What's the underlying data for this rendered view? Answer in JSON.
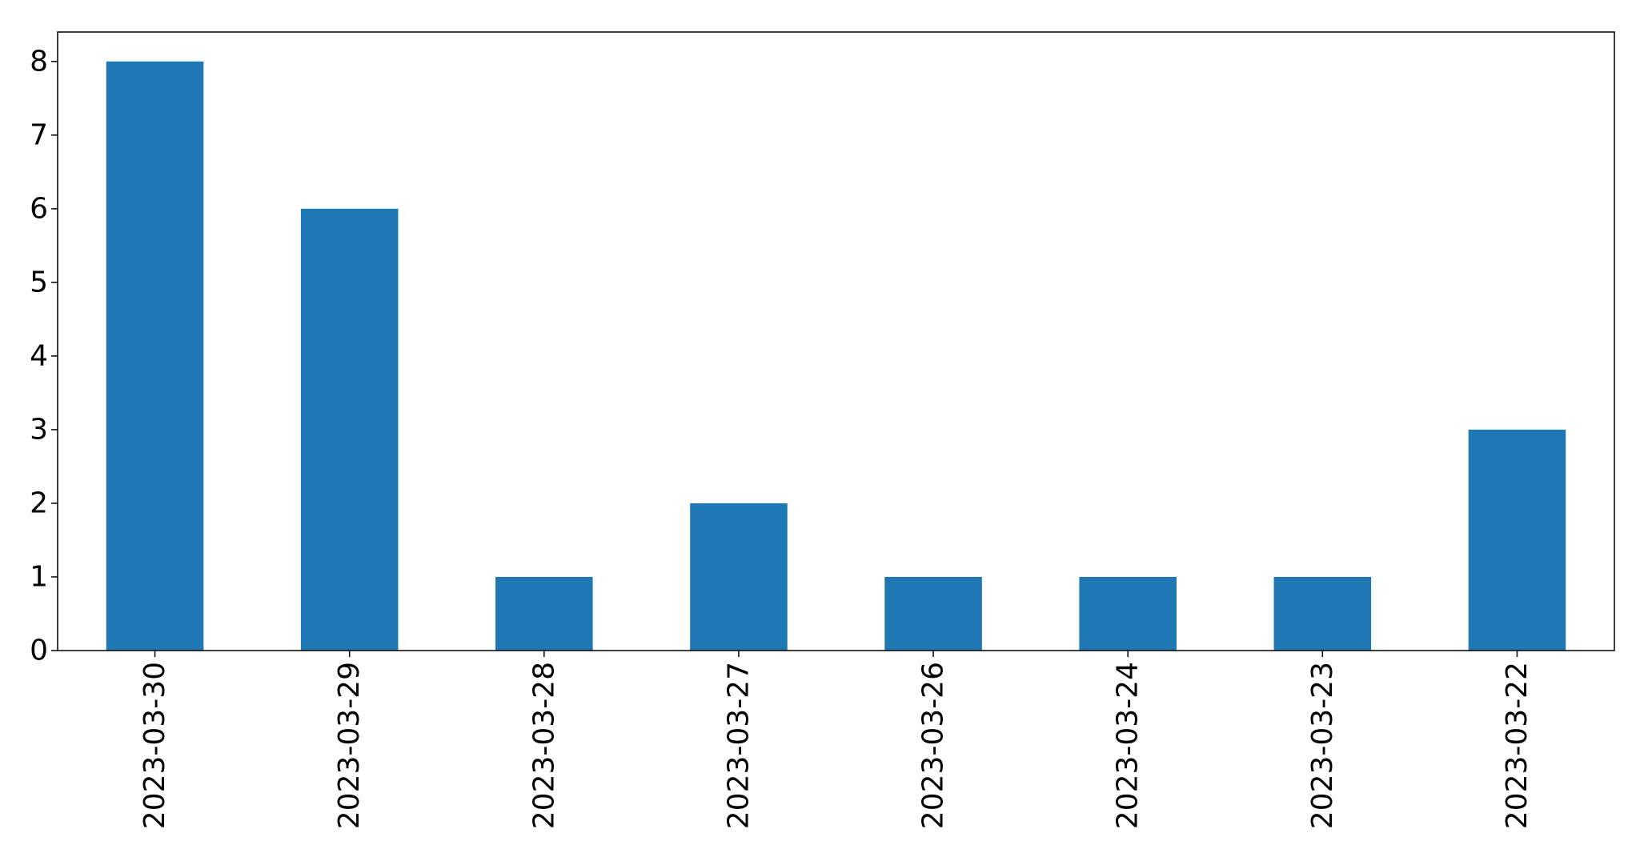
{
  "chart_data": {
    "type": "bar",
    "title": "",
    "xlabel": "",
    "ylabel": "",
    "categories": [
      "2023-03-30",
      "2023-03-29",
      "2023-03-28",
      "2023-03-27",
      "2023-03-26",
      "2023-03-24",
      "2023-03-23",
      "2023-03-22"
    ],
    "values": [
      8,
      6,
      1,
      2,
      1,
      1,
      1,
      3
    ],
    "ylim": [
      0,
      8.4
    ],
    "yticks": [
      0,
      1,
      2,
      3,
      4,
      5,
      6,
      7,
      8
    ],
    "grid": false,
    "legend": "none",
    "bar_color": "#1f77b4",
    "axis_color": "#000000",
    "x_tick_rotation": "vertical"
  }
}
